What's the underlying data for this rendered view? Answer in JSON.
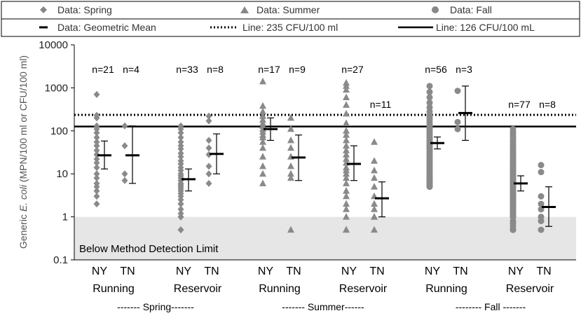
{
  "chart_data": {
    "type": "scatter",
    "yscale": "log",
    "ylim": [
      0.1,
      10000
    ],
    "ylabel_parts": [
      "Generic ",
      "E. coli",
      " (MPN/100 ml or CFU/100 ml)"
    ],
    "y_ticks": [
      {
        "value": 0.1,
        "label": "0.1"
      },
      {
        "value": 1,
        "label": "1"
      },
      {
        "value": 10,
        "label": "10"
      },
      {
        "value": 100,
        "label": "100"
      },
      {
        "value": 1000,
        "label": "1000"
      },
      {
        "value": 10000,
        "label": "10000"
      }
    ],
    "legend": {
      "spring": "Data: Spring",
      "summer": "Data: Summer",
      "fall": "Data: Fall",
      "gmean": "Data: Geometric Mean",
      "line235": "Line:  235 CFU/100 ml",
      "line126": "Line:  126 CFU/100 mL"
    },
    "reference_lines": [
      {
        "name": "235 CFU/100 ml",
        "value": 235,
        "style": "dotted"
      },
      {
        "name": "126 CFU/100 mL",
        "value": 126,
        "style": "solid"
      }
    ],
    "detection_limit": {
      "value": 1,
      "label": "Below Method Detection Limit"
    },
    "season_labels": [
      "------- Spring-------",
      "------- Summer------",
      "-------- Fall -------"
    ],
    "groups": [
      {
        "id": "spring-ny-running",
        "season": "spring",
        "state": "NY",
        "site": "Running",
        "n_label": "n=21",
        "gmean": 27,
        "ci": [
          13,
          58
        ],
        "values": [
          700,
          230,
          200,
          130,
          110,
          90,
          70,
          55,
          45,
          35,
          28,
          22,
          18,
          14,
          10,
          8,
          6,
          5,
          4,
          3,
          2
        ]
      },
      {
        "id": "spring-tn-running",
        "season": "spring",
        "state": "TN",
        "site": "Running",
        "n_label": "n=4",
        "gmean": 27,
        "ci": [
          6,
          130
        ],
        "values": [
          130,
          45,
          10,
          7
        ]
      },
      {
        "id": "spring-ny-reservoir",
        "season": "spring",
        "state": "NY",
        "site": "Reservoir",
        "n_label": "n=33",
        "gmean": 7.5,
        "ci": [
          4,
          13
        ],
        "values": [
          130,
          110,
          90,
          70,
          55,
          45,
          38,
          30,
          25,
          20,
          17,
          14,
          12,
          10,
          9,
          8,
          7,
          6,
          5.5,
          5,
          4.5,
          4,
          3.5,
          3,
          2.5,
          2,
          2,
          1.5,
          1.2,
          1,
          1,
          0.5,
          0.5
        ]
      },
      {
        "id": "spring-tn-reservoir",
        "season": "spring",
        "state": "TN",
        "site": "Reservoir",
        "n_label": "n=8",
        "gmean": 29,
        "ci": [
          10,
          85
        ],
        "values": [
          220,
          170,
          60,
          40,
          28,
          15,
          10,
          6
        ]
      },
      {
        "id": "summer-ny-running",
        "season": "summer",
        "state": "NY",
        "site": "Running",
        "n_label": "n=17",
        "gmean": 110,
        "ci": [
          60,
          200
        ],
        "values": [
          1400,
          380,
          280,
          220,
          180,
          150,
          130,
          110,
          95,
          80,
          70,
          55,
          40,
          25,
          15,
          10,
          6
        ]
      },
      {
        "id": "summer-tn-running",
        "season": "summer",
        "state": "TN",
        "site": "Running",
        "n_label": "n=9",
        "gmean": 24,
        "ci": [
          7,
          80
        ],
        "values": [
          200,
          110,
          60,
          40,
          25,
          15,
          10,
          8,
          0.5
        ]
      },
      {
        "id": "summer-ny-reservoir",
        "season": "summer",
        "state": "NY",
        "site": "Reservoir",
        "n_label": "n=27",
        "gmean": 17,
        "ci": [
          7,
          45
        ],
        "values": [
          1300,
          1100,
          900,
          600,
          400,
          250,
          150,
          100,
          80,
          60,
          45,
          35,
          28,
          22,
          18,
          14,
          12,
          10,
          8,
          6,
          4,
          3,
          2,
          1.5,
          1,
          0.5,
          0.5
        ]
      },
      {
        "id": "summer-tn-reservoir",
        "season": "summer",
        "state": "TN",
        "site": "Reservoir",
        "n_label": "n=11",
        "gmean": 2.7,
        "ci": [
          1,
          6.5
        ],
        "values": [
          55,
          20,
          12,
          8,
          5,
          3,
          2,
          1.5,
          1,
          1,
          0.5
        ]
      },
      {
        "id": "fall-ny-running",
        "season": "fall",
        "state": "NY",
        "site": "Running",
        "n_label": "n=56",
        "gmean": 52,
        "ci": [
          38,
          72
        ],
        "values": [
          1100,
          800,
          600,
          450,
          350,
          280,
          230,
          200,
          180,
          160,
          145,
          130,
          120,
          110,
          100,
          92,
          85,
          78,
          72,
          66,
          60,
          56,
          52,
          48,
          45,
          42,
          39,
          36,
          33,
          30,
          28,
          26,
          24,
          22,
          20,
          18,
          17,
          16,
          15,
          14,
          13,
          12,
          11,
          10,
          9.5,
          9,
          8.5,
          8,
          7.5,
          7,
          6.5,
          6,
          5.8,
          5.5,
          5.2,
          5
        ]
      },
      {
        "id": "fall-tn-running",
        "season": "fall",
        "state": "TN",
        "site": "Running",
        "n_label": "n=3",
        "gmean": 260,
        "ci": [
          60,
          1100
        ],
        "values": [
          850,
          160,
          110
        ]
      },
      {
        "id": "fall-ny-reservoir",
        "season": "fall",
        "state": "NY",
        "site": "Reservoir",
        "n_label": "n=77",
        "gmean": 6,
        "ci": [
          4,
          9
        ],
        "values": [
          110,
          95,
          85,
          75,
          68,
          60,
          54,
          48,
          43,
          39,
          35,
          32,
          29,
          26,
          24,
          22,
          20,
          18,
          17,
          16,
          15,
          14,
          13,
          12,
          11.5,
          11,
          10.5,
          10,
          9.5,
          9,
          8.5,
          8,
          7.6,
          7.2,
          6.8,
          6.4,
          6,
          5.7,
          5.4,
          5.1,
          4.8,
          4.5,
          4.3,
          4.1,
          3.9,
          3.7,
          3.5,
          3.3,
          3.1,
          2.9,
          2.7,
          2.5,
          2.4,
          2.3,
          2.2,
          2.1,
          2,
          1.9,
          1.8,
          1.7,
          1.6,
          1.5,
          1.4,
          1.3,
          1.2,
          1.1,
          1.05,
          1,
          1,
          1,
          0.8,
          0.7,
          0.6,
          0.5,
          0.5,
          0.5,
          0.5
        ]
      },
      {
        "id": "fall-tn-reservoir",
        "season": "fall",
        "state": "TN",
        "site": "Reservoir",
        "n_label": "n=8",
        "gmean": 1.7,
        "ci": [
          0.6,
          5
        ],
        "values": [
          16,
          11,
          3,
          2,
          1.5,
          1,
          0.8,
          0.5
        ]
      }
    ]
  }
}
